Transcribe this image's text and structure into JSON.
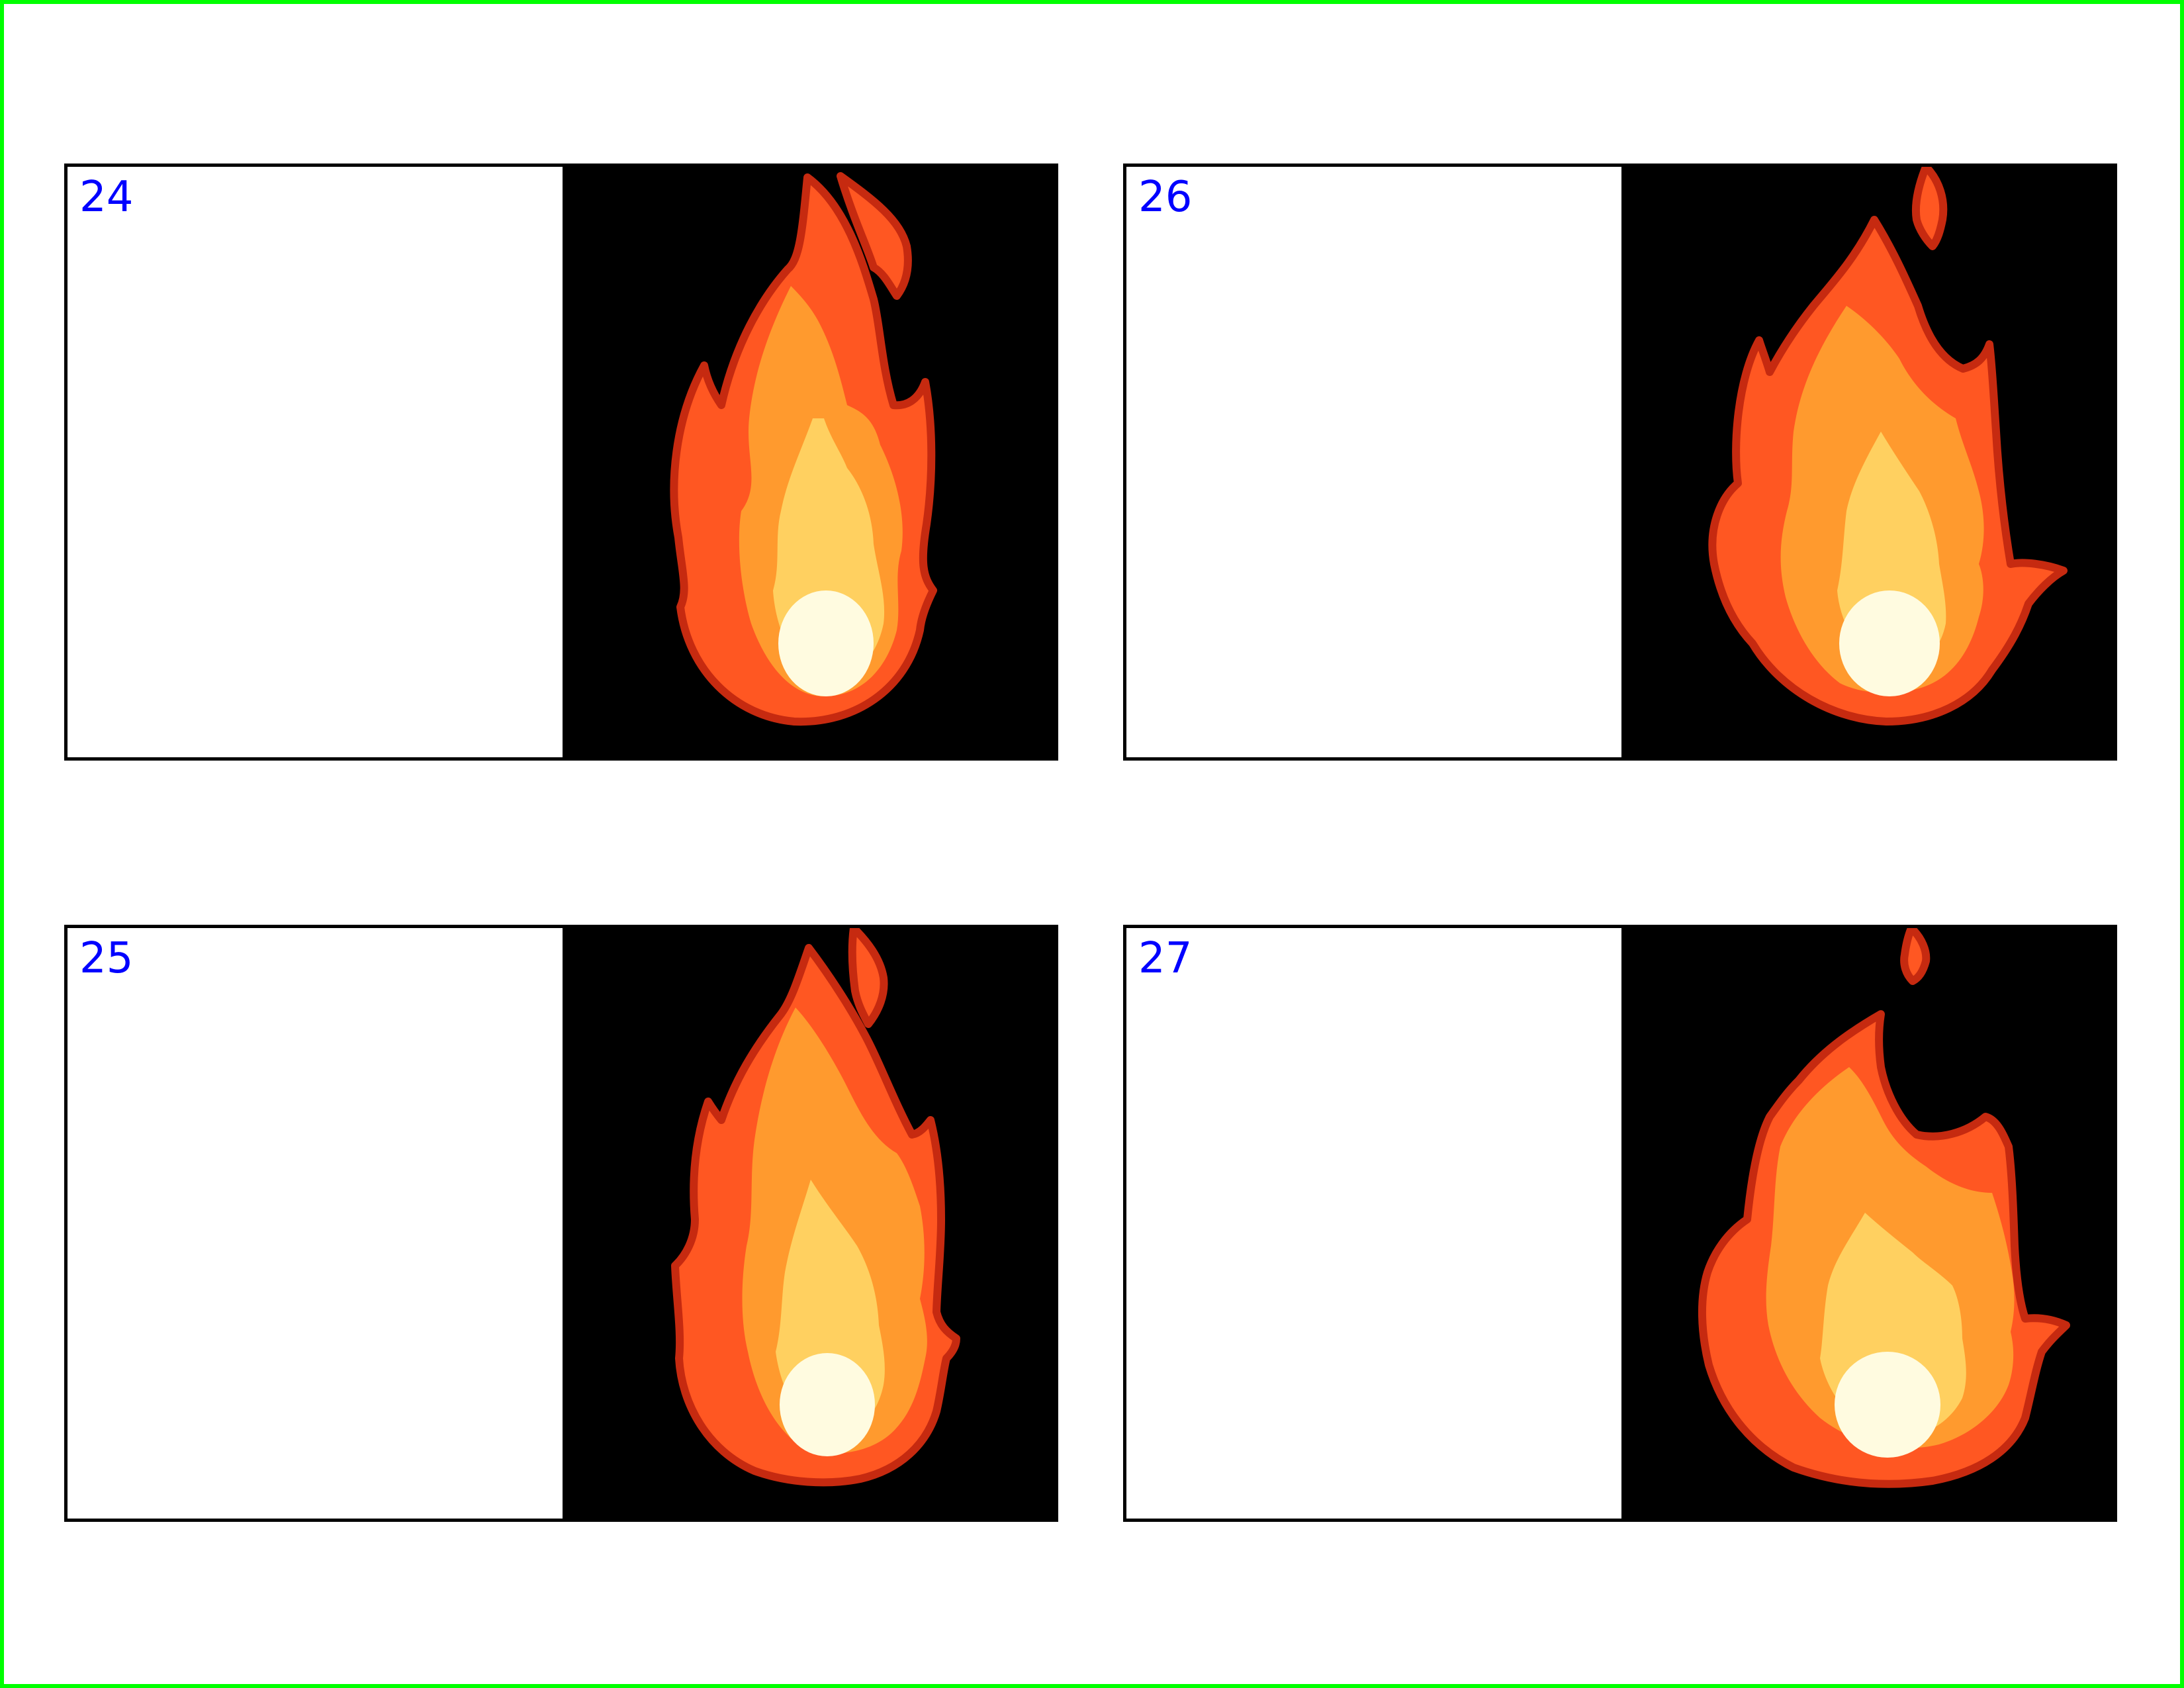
{
  "colors": {
    "page_border": "#00ff00",
    "frame_number": "#0000ff",
    "card_border": "#000000",
    "panel_background": "#000000",
    "flame_outline": "#c62a10",
    "flame_outer": "#ff5722",
    "flame_mid": "#ff9a2e",
    "flame_inner": "#ffd060",
    "flame_core": "#fffbe0"
  },
  "cards": {
    "a": {
      "frame_number": "24",
      "image": "flame-icon"
    },
    "b": {
      "frame_number": "26",
      "image": "flame-icon"
    },
    "c": {
      "frame_number": "25",
      "image": "flame-icon"
    },
    "d": {
      "frame_number": "27",
      "image": "flame-icon"
    }
  }
}
